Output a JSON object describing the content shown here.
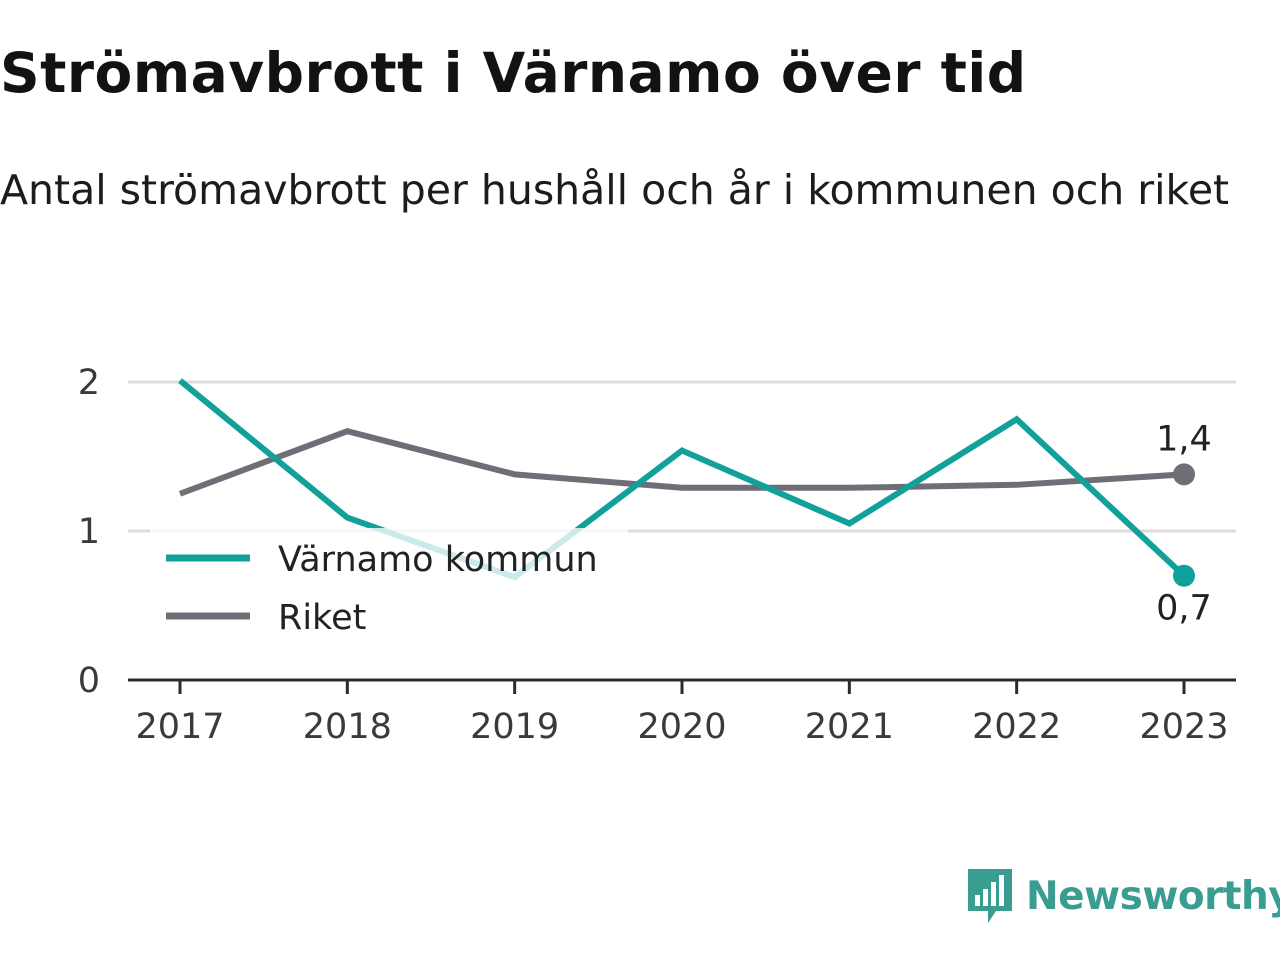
{
  "title": "Strömavbrott i Värnamo över tid",
  "subtitle": "Antal strömavbrott per hushåll och år i kommunen och riket",
  "brand": {
    "name": "Newsworthy",
    "icon": "bar-chart-speech-bubble-icon",
    "color": "#3a9d91"
  },
  "chart_data": {
    "type": "line",
    "x": [
      "2017",
      "2018",
      "2019",
      "2020",
      "2021",
      "2022",
      "2023"
    ],
    "ylim": [
      0,
      2
    ],
    "yticks": [
      "0",
      "1",
      "2"
    ],
    "grid": true,
    "legend_position": "bottom-left",
    "series": [
      {
        "name": "Värnamo kommun",
        "color": "#12a19a",
        "values": [
          2.01,
          1.09,
          0.69,
          1.54,
          1.05,
          1.75,
          0.7
        ],
        "end_label": "0,7"
      },
      {
        "name": "Riket",
        "color": "#6f6e76",
        "values": [
          1.25,
          1.67,
          1.38,
          1.29,
          1.29,
          1.31,
          1.38
        ],
        "end_label": "1,4"
      }
    ]
  }
}
